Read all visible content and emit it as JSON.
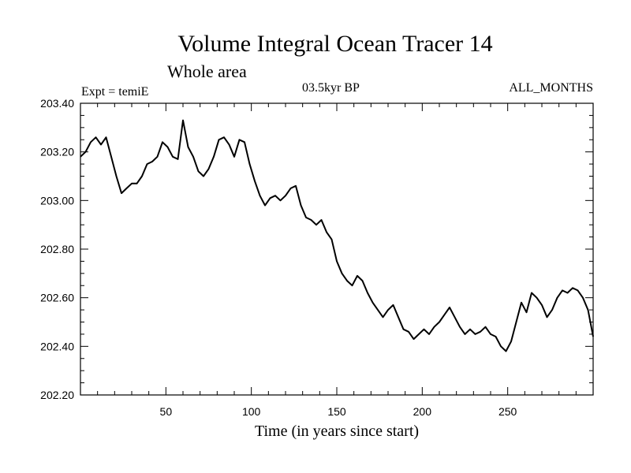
{
  "chart_data": {
    "type": "line",
    "title": "Volume Integral Ocean Tracer 14",
    "subtitle": "Whole area",
    "annotations": {
      "left": "Expt = temiE",
      "center": "03.5kyr BP",
      "right": "ALL_MONTHS"
    },
    "xlabel": "Time (in years since start)",
    "ylabel": "",
    "xlim": [
      0,
      300
    ],
    "ylim": [
      202.2,
      203.4
    ],
    "x_ticks": [
      50,
      100,
      150,
      200,
      250
    ],
    "x_tick_labels": [
      "50",
      "100",
      "150",
      "200",
      "250"
    ],
    "y_ticks": [
      202.2,
      202.4,
      202.6,
      202.8,
      203.0,
      203.2,
      203.4
    ],
    "y_tick_labels": [
      "202.20",
      "202.40",
      "202.60",
      "202.80",
      "203.00",
      "203.20",
      "203.40"
    ],
    "grid": false,
    "series": [
      {
        "color": "#000000",
        "x": [
          0,
          3,
          6,
          9,
          12,
          15,
          18,
          21,
          24,
          27,
          30,
          33,
          36,
          39,
          42,
          45,
          48,
          51,
          54,
          57,
          60,
          63,
          66,
          69,
          72,
          75,
          78,
          81,
          84,
          87,
          90,
          93,
          96,
          99,
          102,
          105,
          108,
          111,
          114,
          117,
          120,
          123,
          126,
          129,
          132,
          135,
          138,
          141,
          144,
          147,
          150,
          153,
          156,
          159,
          162,
          165,
          168,
          171,
          174,
          177,
          180,
          183,
          186,
          189,
          192,
          195,
          198,
          201,
          204,
          207,
          210,
          213,
          216,
          219,
          222,
          225,
          228,
          231,
          234,
          237,
          240,
          243,
          246,
          249,
          252,
          255,
          258,
          261,
          264,
          267,
          270,
          273,
          276,
          279,
          282,
          285,
          288,
          291,
          294,
          297,
          300
        ],
        "y": [
          203.18,
          203.2,
          203.24,
          203.26,
          203.23,
          203.26,
          203.18,
          203.1,
          203.03,
          203.05,
          203.07,
          203.07,
          203.1,
          203.15,
          203.16,
          203.18,
          203.24,
          203.22,
          203.18,
          203.17,
          203.33,
          203.22,
          203.18,
          203.12,
          203.1,
          203.13,
          203.18,
          203.25,
          203.26,
          203.23,
          203.18,
          203.25,
          203.24,
          203.15,
          203.08,
          203.02,
          202.98,
          203.01,
          203.02,
          203.0,
          203.02,
          203.05,
          203.06,
          202.98,
          202.93,
          202.92,
          202.9,
          202.92,
          202.87,
          202.84,
          202.75,
          202.7,
          202.67,
          202.65,
          202.69,
          202.67,
          202.62,
          202.58,
          202.55,
          202.52,
          202.55,
          202.57,
          202.52,
          202.47,
          202.46,
          202.43,
          202.45,
          202.47,
          202.45,
          202.48,
          202.5,
          202.53,
          202.56,
          202.52,
          202.48,
          202.45,
          202.47,
          202.45,
          202.46,
          202.48,
          202.45,
          202.44,
          202.4,
          202.38,
          202.42,
          202.5,
          202.58,
          202.54,
          202.62,
          202.6,
          202.57,
          202.52,
          202.55,
          202.6,
          202.63,
          202.62,
          202.64,
          202.63,
          202.6,
          202.55,
          202.44
        ]
      }
    ]
  }
}
